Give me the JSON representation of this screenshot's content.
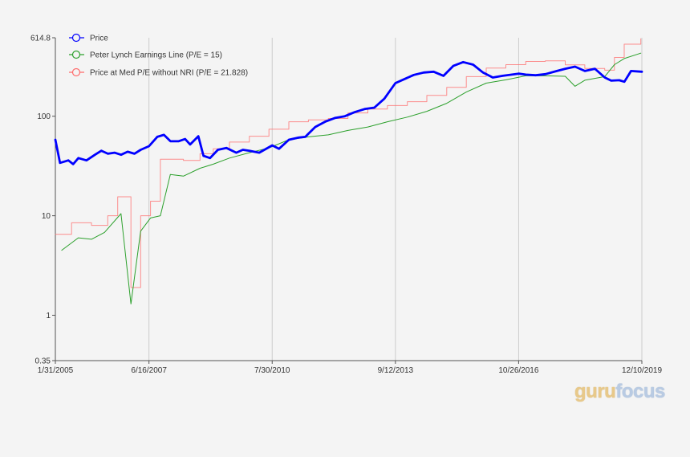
{
  "colors": {
    "price": "#0000ff",
    "lynch": "#2ca02c",
    "medpe": "#ff6b6b",
    "grid": "#cccccc",
    "axis": "#555555",
    "background": "#f4f4f4"
  },
  "watermark": {
    "part1": "guru",
    "part2": "focus"
  },
  "chart_data": {
    "type": "line",
    "y_scale": "log",
    "ylim": [
      0.35,
      614.8
    ],
    "y_ticks": [
      0.35,
      1,
      10,
      100,
      614.8
    ],
    "y_tick_labels": [
      "0.35",
      "1",
      "10",
      "100",
      "614.8"
    ],
    "xlim": [
      "2005-01-31",
      "2019-12-10"
    ],
    "x_ticks": [
      "2005-01-31",
      "2007-06-16",
      "2010-07-30",
      "2013-09-12",
      "2016-10-26",
      "2019-12-10"
    ],
    "x_tick_labels": [
      "1/31/2005",
      "6/16/2007",
      "7/30/2010",
      "9/12/2013",
      "10/26/2016",
      "12/10/2019"
    ],
    "grid": "vertical",
    "legend_position": "top-left",
    "legend": [
      "Price",
      "Peter Lynch Earnings Line (P/E = 15)",
      "Price at Med P/E without NRI (P/E = 21.828)"
    ],
    "series": [
      {
        "name": "Price",
        "key": "price",
        "style": "thick",
        "points": [
          [
            "2005-01-31",
            58
          ],
          [
            "2005-03-15",
            34
          ],
          [
            "2005-05-31",
            36
          ],
          [
            "2005-07-15",
            33
          ],
          [
            "2005-09-01",
            38
          ],
          [
            "2005-11-15",
            36
          ],
          [
            "2006-02-01",
            41
          ],
          [
            "2006-04-01",
            45
          ],
          [
            "2006-06-01",
            42
          ],
          [
            "2006-08-01",
            43
          ],
          [
            "2006-10-01",
            41
          ],
          [
            "2006-12-01",
            44
          ],
          [
            "2007-02-01",
            42
          ],
          [
            "2007-04-01",
            46
          ],
          [
            "2007-06-16",
            50
          ],
          [
            "2007-09-01",
            62
          ],
          [
            "2007-11-01",
            65
          ],
          [
            "2008-01-01",
            56
          ],
          [
            "2008-03-15",
            56
          ],
          [
            "2008-05-15",
            59
          ],
          [
            "2008-07-01",
            52
          ],
          [
            "2008-09-15",
            63
          ],
          [
            "2008-11-01",
            40
          ],
          [
            "2009-01-01",
            38
          ],
          [
            "2009-03-15",
            46
          ],
          [
            "2009-06-01",
            48
          ],
          [
            "2009-09-01",
            43
          ],
          [
            "2009-11-01",
            46
          ],
          [
            "2010-01-01",
            45
          ],
          [
            "2010-04-01",
            43
          ],
          [
            "2010-07-30",
            51
          ],
          [
            "2010-10-01",
            47
          ],
          [
            "2011-01-01",
            58
          ],
          [
            "2011-04-01",
            61
          ],
          [
            "2011-06-01",
            62
          ],
          [
            "2011-09-01",
            78
          ],
          [
            "2011-12-01",
            88
          ],
          [
            "2012-03-01",
            96
          ],
          [
            "2012-06-01",
            100
          ],
          [
            "2012-09-01",
            110
          ],
          [
            "2012-12-01",
            118
          ],
          [
            "2013-03-01",
            122
          ],
          [
            "2013-06-01",
            150
          ],
          [
            "2013-09-12",
            215
          ],
          [
            "2013-12-01",
            235
          ],
          [
            "2014-03-01",
            260
          ],
          [
            "2014-06-01",
            275
          ],
          [
            "2014-09-01",
            280
          ],
          [
            "2014-12-01",
            255
          ],
          [
            "2015-03-01",
            320
          ],
          [
            "2015-06-01",
            350
          ],
          [
            "2015-09-01",
            330
          ],
          [
            "2015-12-01",
            275
          ],
          [
            "2016-03-01",
            245
          ],
          [
            "2016-06-01",
            255
          ],
          [
            "2016-10-26",
            268
          ],
          [
            "2017-01-01",
            262
          ],
          [
            "2017-04-01",
            258
          ],
          [
            "2017-07-01",
            265
          ],
          [
            "2017-10-01",
            282
          ],
          [
            "2018-01-01",
            300
          ],
          [
            "2018-04-01",
            315
          ],
          [
            "2018-07-01",
            285
          ],
          [
            "2018-10-01",
            300
          ],
          [
            "2019-01-01",
            245
          ],
          [
            "2019-03-01",
            228
          ],
          [
            "2019-05-15",
            230
          ],
          [
            "2019-07-01",
            222
          ],
          [
            "2019-09-01",
            285
          ],
          [
            "2019-12-10",
            280
          ]
        ]
      },
      {
        "name": "Peter Lynch Earnings Line (P/E = 15)",
        "key": "lynch",
        "style": "thin",
        "points": [
          [
            "2005-03-31",
            4.5
          ],
          [
            "2005-08-31",
            6.0
          ],
          [
            "2005-12-31",
            5.8
          ],
          [
            "2006-04-30",
            6.8
          ],
          [
            "2006-09-30",
            10.5
          ],
          [
            "2006-12-31",
            1.3
          ],
          [
            "2007-03-31",
            7.0
          ],
          [
            "2007-06-30",
            9.5
          ],
          [
            "2007-09-30",
            10.0
          ],
          [
            "2007-12-31",
            26
          ],
          [
            "2008-04-30",
            25
          ],
          [
            "2008-09-30",
            30
          ],
          [
            "2009-01-31",
            33
          ],
          [
            "2009-06-30",
            38
          ],
          [
            "2009-12-31",
            43
          ],
          [
            "2010-06-30",
            48
          ],
          [
            "2010-12-31",
            58
          ],
          [
            "2011-06-30",
            62
          ],
          [
            "2011-12-31",
            65
          ],
          [
            "2012-06-30",
            72
          ],
          [
            "2012-12-31",
            78
          ],
          [
            "2013-06-30",
            88
          ],
          [
            "2013-12-31",
            98
          ],
          [
            "2014-06-30",
            112
          ],
          [
            "2014-12-31",
            135
          ],
          [
            "2015-06-30",
            175
          ],
          [
            "2015-12-31",
            215
          ],
          [
            "2016-06-30",
            232
          ],
          [
            "2016-12-31",
            255
          ],
          [
            "2017-06-30",
            255
          ],
          [
            "2017-12-31",
            252
          ],
          [
            "2018-03-31",
            200
          ],
          [
            "2018-06-30",
            230
          ],
          [
            "2018-12-31",
            250
          ],
          [
            "2019-03-31",
            330
          ],
          [
            "2019-06-30",
            380
          ],
          [
            "2019-11-30",
            430
          ]
        ]
      },
      {
        "name": "Price at Med P/E without NRI (P/E = 21.828)",
        "key": "medpe",
        "style": "step",
        "points": [
          [
            "2005-01-31",
            6.5
          ],
          [
            "2005-06-30",
            8.5
          ],
          [
            "2005-12-31",
            8.0
          ],
          [
            "2006-05-31",
            10.0
          ],
          [
            "2006-08-31",
            15.5
          ],
          [
            "2006-12-31",
            1.9
          ],
          [
            "2007-03-31",
            10.0
          ],
          [
            "2007-06-30",
            14.0
          ],
          [
            "2007-09-30",
            37
          ],
          [
            "2008-04-30",
            36
          ],
          [
            "2008-09-30",
            42
          ],
          [
            "2009-01-31",
            47
          ],
          [
            "2009-06-30",
            55
          ],
          [
            "2009-12-31",
            63
          ],
          [
            "2010-06-30",
            74
          ],
          [
            "2010-12-31",
            88
          ],
          [
            "2011-06-30",
            92
          ],
          [
            "2011-12-31",
            95
          ],
          [
            "2012-06-30",
            108
          ],
          [
            "2012-12-31",
            118
          ],
          [
            "2013-06-30",
            128
          ],
          [
            "2013-12-31",
            140
          ],
          [
            "2014-06-30",
            162
          ],
          [
            "2014-12-31",
            195
          ],
          [
            "2015-06-30",
            250
          ],
          [
            "2015-12-31",
            305
          ],
          [
            "2016-06-30",
            330
          ],
          [
            "2016-12-31",
            355
          ],
          [
            "2017-06-30",
            360
          ],
          [
            "2017-12-31",
            328
          ],
          [
            "2018-06-30",
            302
          ],
          [
            "2018-12-31",
            290
          ],
          [
            "2019-03-31",
            390
          ],
          [
            "2019-06-30",
            530
          ],
          [
            "2019-11-30",
            600
          ]
        ]
      }
    ]
  }
}
